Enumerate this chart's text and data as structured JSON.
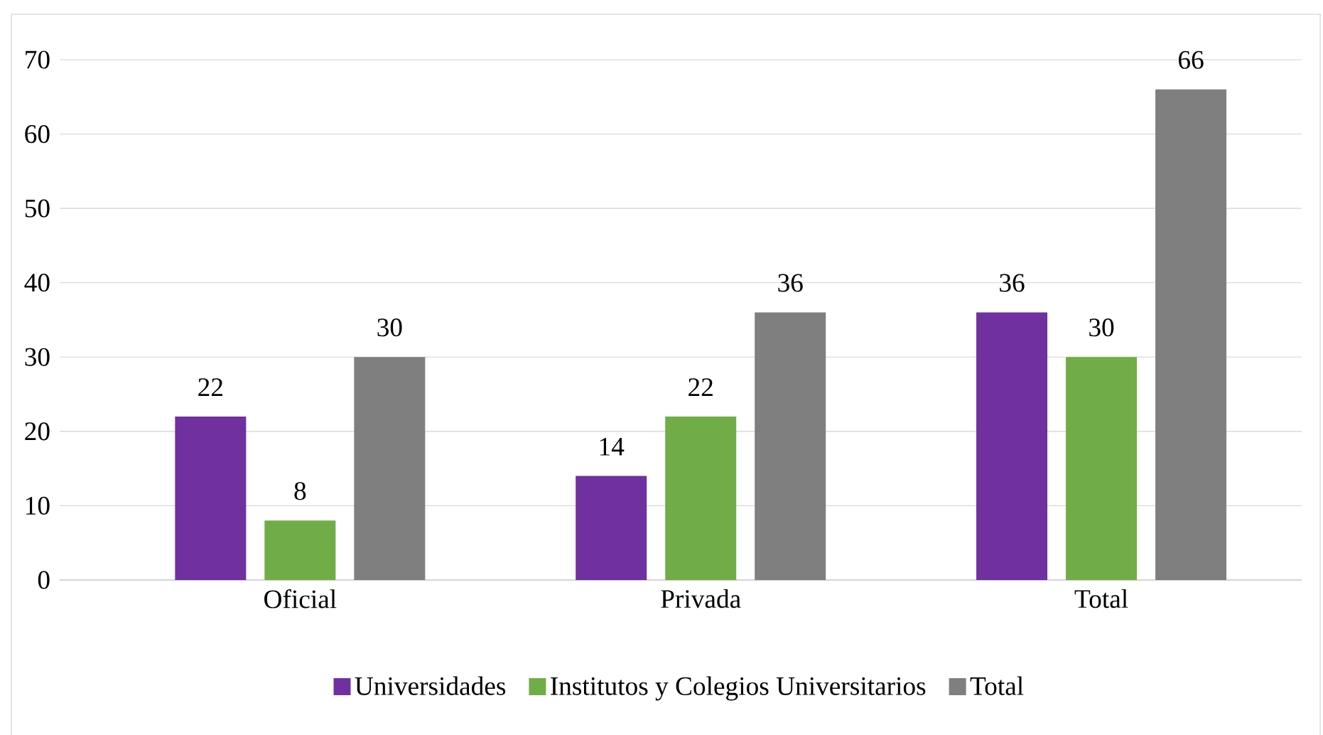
{
  "chart_data": {
    "type": "bar",
    "categories": [
      "Oficial",
      "Privada",
      "Total"
    ],
    "series": [
      {
        "name": "Universidades",
        "color": "#7030a0",
        "values": [
          22,
          14,
          36
        ]
      },
      {
        "name": "Institutos y Colegios Universitarios",
        "color": "#70ad47",
        "values": [
          8,
          22,
          30
        ]
      },
      {
        "name": "Total",
        "color": "#7f7f7f",
        "values": [
          30,
          36,
          66
        ]
      }
    ],
    "ylim": [
      0,
      70
    ],
    "yticks": [
      0,
      10,
      20,
      30,
      40,
      50,
      60,
      70
    ],
    "grid": "y",
    "legend": "bottom",
    "data_labels": true
  }
}
